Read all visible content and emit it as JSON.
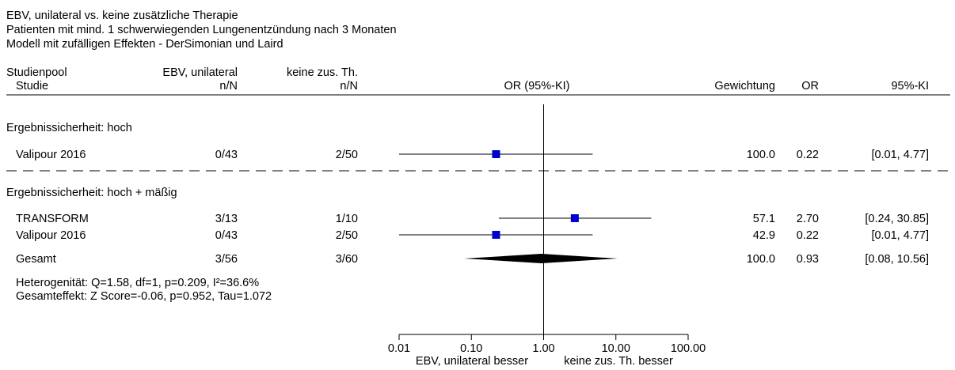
{
  "header": {
    "line1": "EBV, unilateral vs. keine zusätzliche Therapie",
    "line2": "Patienten mit mind. 1 schwerwiegenden Lungenentzündung nach 3 Monaten",
    "line3": "Modell mit zufälligen Effekten - DerSimonian und Laird"
  },
  "columns": {
    "studienpool": "Studienpool",
    "studie": "Studie",
    "group1_top": "EBV, unilateral",
    "group1_sub": "n/N",
    "group2_top": "keine zus. Th.",
    "group2_sub": "n/N",
    "effect": "OR (95%-KI)",
    "weight": "Gewichtung",
    "or": "OR",
    "ci": "95%-KI"
  },
  "colors": {
    "study_marker": "#0000cc",
    "pooled_diamond": "#000000",
    "lines": "#000000"
  },
  "chart_data": {
    "type": "forest",
    "x_scale": "log",
    "xlim": [
      0.01,
      100
    ],
    "reference_line": 1,
    "xticks": [
      0.01,
      0.1,
      1,
      10,
      100
    ],
    "xtick_labels": [
      "0.01",
      "0.10",
      "1.00",
      "10.00",
      "100.00"
    ],
    "xlabel_left": "EBV, unilateral besser",
    "xlabel_right": "keine zus. Th. besser",
    "sections": [
      {
        "title": "Ergebnissicherheit: hoch",
        "studies": [
          {
            "name": "Valipour 2016",
            "g1": "0/43",
            "g2": "2/50",
            "weight": "100.0",
            "or": 0.22,
            "ci_low": 0.01,
            "ci_high": 4.77,
            "or_label": "0.22",
            "ci_label": "[0.01, 4.77]"
          }
        ]
      },
      {
        "title": "Ergebnissicherheit: hoch + mäßig",
        "studies": [
          {
            "name": "TRANSFORM",
            "g1": "3/13",
            "g2": "1/10",
            "weight": "57.1",
            "or": 2.7,
            "ci_low": 0.24,
            "ci_high": 30.85,
            "or_label": "2.70",
            "ci_label": "[0.24, 30.85]"
          },
          {
            "name": "Valipour 2016",
            "g1": "0/43",
            "g2": "2/50",
            "weight": "42.9",
            "or": 0.22,
            "ci_low": 0.01,
            "ci_high": 4.77,
            "or_label": "0.22",
            "ci_label": "[0.01, 4.77]"
          }
        ],
        "pooled": {
          "name": "Gesamt",
          "g1": "3/56",
          "g2": "3/60",
          "weight": "100.0",
          "or": 0.93,
          "ci_low": 0.08,
          "ci_high": 10.56,
          "or_label": "0.93",
          "ci_label": "[0.08, 10.56]"
        },
        "notes": [
          "Heterogenität: Q=1.58, df=1, p=0.209, I²=36.6%",
          "Gesamteffekt: Z Score=-0.06, p=0.952, Tau=1.072"
        ]
      }
    ]
  }
}
